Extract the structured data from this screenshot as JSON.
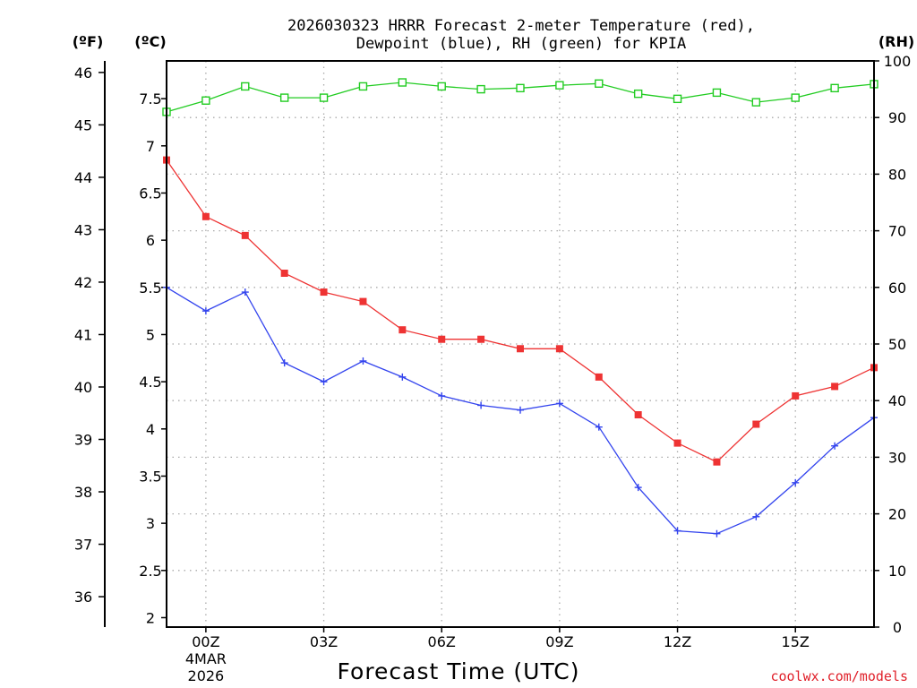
{
  "chart_data": {
    "type": "line",
    "title_line1": "2026030323 HRRR Forecast 2-meter Temperature (red),",
    "title_line2": "Dewpoint (blue), RH (green) for KPIA",
    "xlabel": "Forecast Time (UTC)",
    "credit": "coolwx.com/models",
    "units": {
      "fahrenheit": "(ºF)",
      "celsius": "(ºC)",
      "rh": "(RH)"
    },
    "x_hours": [
      -1,
      0,
      1,
      2,
      3,
      4,
      5,
      6,
      7,
      8,
      9,
      10,
      11,
      12,
      13,
      14,
      15,
      16,
      17
    ],
    "x_range": [
      -1,
      17
    ],
    "x_ticks": [
      {
        "hour": 0,
        "label": "00Z",
        "sub1": "4MAR",
        "sub2": "2026"
      },
      {
        "hour": 3,
        "label": "03Z"
      },
      {
        "hour": 6,
        "label": "06Z"
      },
      {
        "hour": 9,
        "label": "09Z"
      },
      {
        "hour": 12,
        "label": "12Z"
      },
      {
        "hour": 15,
        "label": "15Z"
      }
    ],
    "celsius_range": [
      1.9,
      7.9
    ],
    "celsius_ticks": [
      "2",
      "2.5",
      "3",
      "3.5",
      "4",
      "4.5",
      "5",
      "5.5",
      "6",
      "6.5",
      "7",
      "7.5"
    ],
    "fahrenheit_ticks": [
      "36",
      "37",
      "38",
      "39",
      "40",
      "41",
      "42",
      "43",
      "44",
      "45",
      "46"
    ],
    "rh_range": [
      0,
      100
    ],
    "rh_ticks": [
      "0",
      "10",
      "20",
      "30",
      "40",
      "50",
      "60",
      "70",
      "80",
      "90",
      "100"
    ],
    "series": [
      {
        "name": "Temperature",
        "color": "#ee3333",
        "marker": "filled-square",
        "axis": "celsius",
        "values": [
          6.85,
          6.25,
          6.05,
          5.65,
          5.45,
          5.35,
          5.05,
          4.95,
          4.95,
          4.85,
          4.85,
          4.55,
          4.15,
          3.85,
          3.65,
          4.05,
          4.35,
          4.45,
          4.65
        ]
      },
      {
        "name": "Dewpoint",
        "color": "#3344ee",
        "marker": "plus",
        "axis": "celsius",
        "values": [
          5.5,
          5.25,
          5.45,
          4.7,
          4.5,
          4.72,
          4.55,
          4.35,
          4.25,
          4.2,
          4.27,
          4.02,
          3.38,
          2.92,
          2.89,
          3.07,
          3.43,
          3.82,
          4.12
        ]
      },
      {
        "name": "RH",
        "color": "#22cc22",
        "marker": "open-square",
        "axis": "rh",
        "values": [
          91,
          93,
          95.5,
          93.5,
          93.5,
          95.5,
          96.2,
          95.5,
          95,
          95.2,
          95.7,
          96,
          94.2,
          93.3,
          94.4,
          92.7,
          93.5,
          95.2,
          95.9
        ]
      }
    ]
  }
}
